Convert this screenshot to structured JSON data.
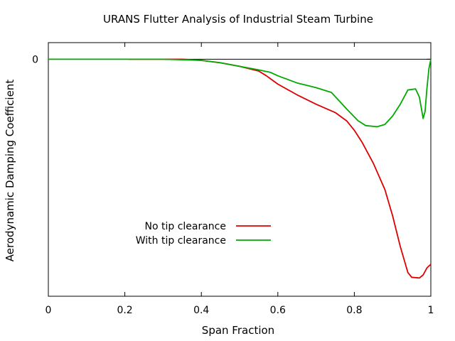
{
  "chart_data": {
    "type": "line",
    "title": "URANS Flutter Analysis of Industrial Steam Turbine",
    "xlabel": "Span Fraction",
    "ylabel": "Aerodynamic Damping Coefficient",
    "xlim": [
      0,
      1
    ],
    "ylim": [
      -100,
      7
    ],
    "x_ticks": [
      {
        "value": 0,
        "label": "0"
      },
      {
        "value": 0.2,
        "label": "0.2"
      },
      {
        "value": 0.4,
        "label": "0.4"
      },
      {
        "value": 0.6,
        "label": "0.6"
      },
      {
        "value": 0.8,
        "label": "0.8"
      },
      {
        "value": 1,
        "label": "1"
      }
    ],
    "y_ticks": [
      {
        "value": 0,
        "label": "0"
      }
    ],
    "grid": false,
    "zero_line": true,
    "legend_position": "center-left",
    "colors": {
      "axis": "#000000",
      "no_tip": "#dd0000",
      "with_tip": "#00aa00"
    },
    "series": [
      {
        "name": "No tip clearance",
        "color": "#dd0000",
        "x": [
          0.21,
          0.25,
          0.3,
          0.35,
          0.4,
          0.45,
          0.5,
          0.55,
          0.57,
          0.6,
          0.65,
          0.7,
          0.75,
          0.78,
          0.8,
          0.82,
          0.85,
          0.88,
          0.9,
          0.92,
          0.94,
          0.95,
          0.97,
          0.98,
          0.99,
          1.0
        ],
        "y": [
          0.0,
          0.0,
          0.0,
          0.0,
          -0.5,
          -1.5,
          -3.0,
          -5.0,
          -7.0,
          -10.5,
          -15.0,
          -19.0,
          -22.5,
          -26.0,
          -30.0,
          -35.0,
          -44.0,
          -55.0,
          -66.0,
          -79.0,
          -90.0,
          -92.0,
          -92.3,
          -91.0,
          -88.0,
          -86.5
        ]
      },
      {
        "name": "With tip clearance",
        "color": "#00aa00",
        "x": [
          0.0,
          0.1,
          0.2,
          0.3,
          0.4,
          0.45,
          0.5,
          0.55,
          0.58,
          0.6,
          0.65,
          0.7,
          0.74,
          0.78,
          0.81,
          0.83,
          0.86,
          0.88,
          0.9,
          0.92,
          0.94,
          0.96,
          0.97,
          0.98,
          0.985,
          0.99,
          0.995,
          1.0
        ],
        "y": [
          0.0,
          0.0,
          0.0,
          0.0,
          -0.5,
          -1.5,
          -3.0,
          -4.5,
          -5.5,
          -7.0,
          -10.0,
          -12.0,
          -14.0,
          -21.0,
          -26.0,
          -28.0,
          -28.5,
          -27.5,
          -24.0,
          -19.0,
          -13.0,
          -12.5,
          -16.0,
          -25.0,
          -22.0,
          -12.0,
          -4.0,
          0.0
        ]
      }
    ]
  }
}
